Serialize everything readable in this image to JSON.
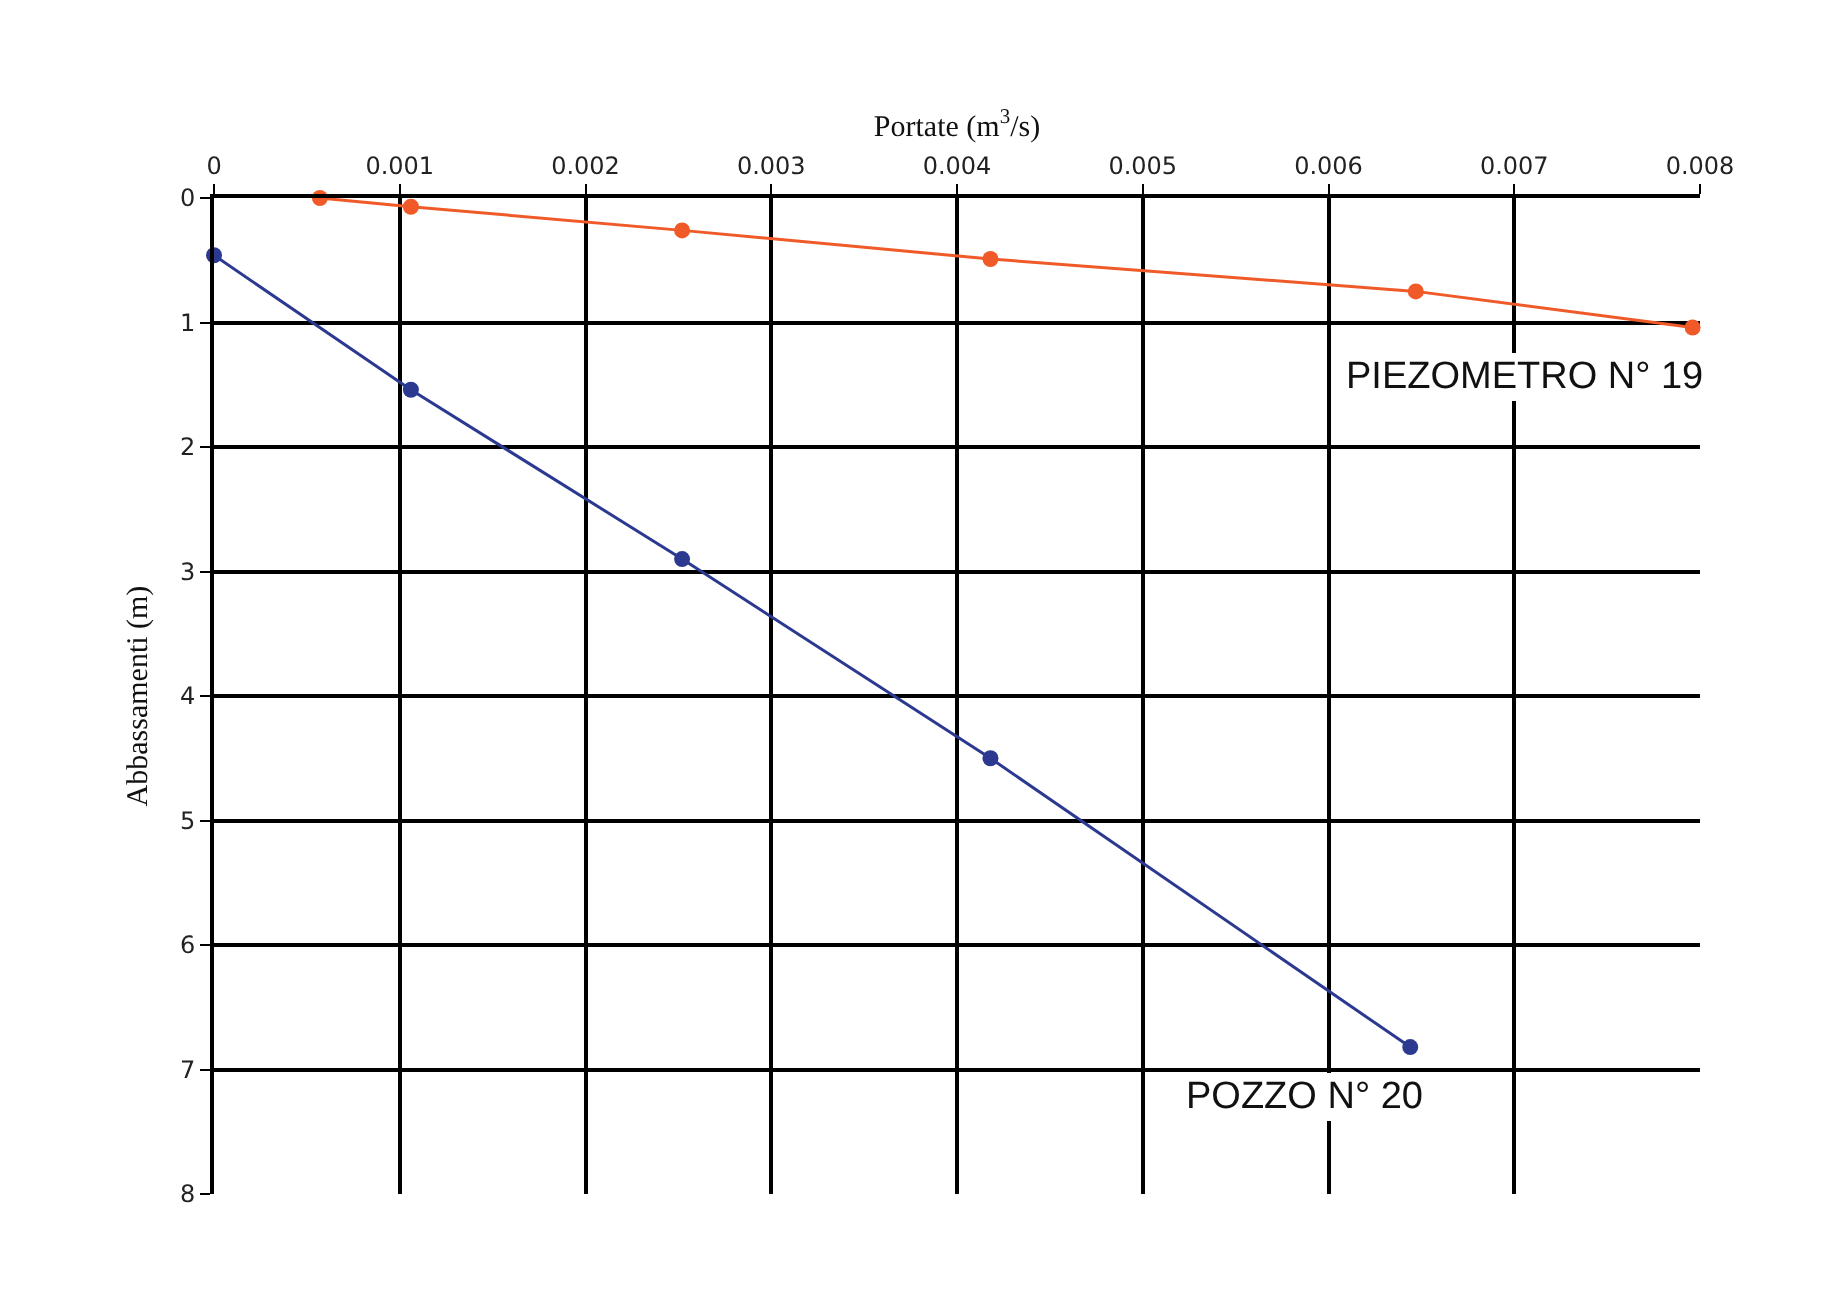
{
  "chart_data": {
    "type": "line",
    "xlabel": "Portate (m$^{3}$/s)",
    "ylabel": "Abbassamenti (m)",
    "series": [
      {
        "name": "PIEZOMETRO N° 19",
        "color": "#f05a28",
        "x": [
          0.00057,
          0.00106,
          0.00252,
          0.00418,
          0.00647,
          0.00796
        ],
        "values": [
          0,
          0.07,
          0.26,
          0.49,
          0.75,
          1.04
        ]
      },
      {
        "name": "POZZO N° 20",
        "color": "#2b3990",
        "x": [
          0,
          0.00106,
          0.00252,
          0.00418,
          0.00644
        ],
        "values": [
          0.46,
          1.54,
          2.9,
          4.5,
          6.82
        ]
      }
    ],
    "xlim": [
      0,
      0.008
    ],
    "xticks": [
      0,
      0.001,
      0.002,
      0.003,
      0.004,
      0.005,
      0.006,
      0.007,
      0.008
    ],
    "ylim": [
      8,
      0
    ],
    "yticks": [
      0,
      1,
      2,
      3,
      4,
      5,
      6,
      7,
      8
    ],
    "grid": true,
    "marker": "circle",
    "line_style": "solid",
    "legend": false
  }
}
